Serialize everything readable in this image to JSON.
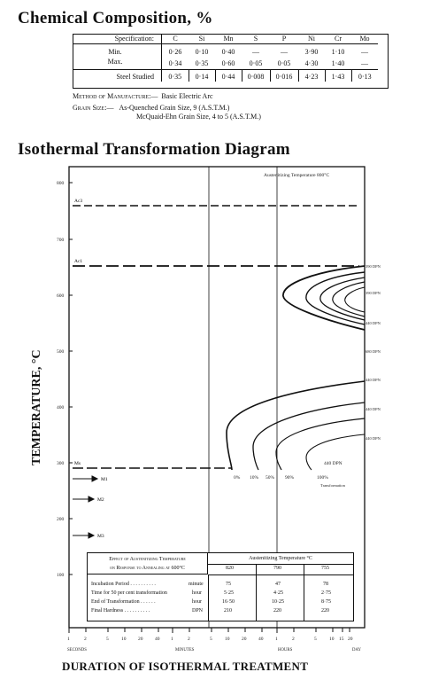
{
  "composition": {
    "title": "Chemical Composition, %",
    "spec_label": "Specification:",
    "elements": [
      "C",
      "Si",
      "Mn",
      "S",
      "P",
      "Ni",
      "Cr",
      "Mo"
    ],
    "min_label": "Min.",
    "max_label": "Max.",
    "min_values": [
      "0·26",
      "0·10",
      "0·40",
      "—",
      "—",
      "3·90",
      "1·10",
      "—"
    ],
    "max_values": [
      "0·34",
      "0·35",
      "0·60",
      "0·05",
      "0·05",
      "4·30",
      "1·40",
      "—"
    ],
    "studied_label": "Steel Studied",
    "studied_values": [
      "0·35",
      "0·14",
      "0·44",
      "0·008",
      "0·016",
      "4·23",
      "1·43",
      "0·13"
    ]
  },
  "manufacture": {
    "label": "Method of Manufacture:—",
    "value": "Basic Electric Arc"
  },
  "grain": {
    "label": "Grain Size:—",
    "line1": "As-Quenched Grain Size, 9 (A.S.T.M.)",
    "line2": "McQuaid-Ehn Grain Size, 4 to 5 (A.S.T.M.)"
  },
  "diagram": {
    "title": "Isothermal Transformation Diagram",
    "y_axis_label": "TEMPERATURE, °C",
    "x_axis_label": "DURATION OF ISOTHERMAL TREATMENT",
    "austenitizing_note": "Austenitizing Temperature 800°C",
    "y_ticks": [
      "800",
      "700",
      "600",
      "500",
      "400",
      "300",
      "200",
      "100"
    ],
    "x_ticks": [
      "1",
      "2",
      "5",
      "10",
      "20",
      "40",
      "1",
      "2",
      "5",
      "10",
      "20",
      "40",
      "1",
      "2",
      "5",
      "10",
      "15",
      "20"
    ],
    "x_units": [
      "SECONDS",
      "MINUTES",
      "HOURS",
      "DAY"
    ],
    "lines": [
      "Ac3",
      "Ac1",
      "Ms",
      "M1",
      "M2",
      "M3"
    ],
    "percent_labels": [
      "0%",
      "10%",
      "50%",
      "90%",
      "100%"
    ],
    "transformation_label": "Transformation",
    "hardness_labels": [
      "390 DPN",
      "390 DPN",
      "440 DPN",
      "680 DPN",
      "440 DPN",
      "440 DPN",
      "440 DPN"
    ],
    "inset": {
      "title_line1": "Effect of Austenitizing Temperature",
      "title_line2": "on Response to Annealing at 600°C",
      "header": "Austenitizing Temperature °C",
      "temps": [
        "820",
        "790",
        "755"
      ],
      "rows": [
        {
          "label": "Incubation Period . . . . . . . . . .",
          "unit": "minute",
          "values": [
            "75",
            "47",
            "78"
          ]
        },
        {
          "label": "Time for 50 per cent transformation",
          "unit": "hour",
          "values": [
            "5·25",
            "4·25",
            "2·75"
          ]
        },
        {
          "label": "End of Transformation . . . . . .",
          "unit": "hour",
          "values": [
            "16·50",
            "10·25",
            "8·75"
          ]
        },
        {
          "label": "Final Hardness . . . . . . . . . .",
          "unit": "DPN",
          "values": [
            "210",
            "220",
            "220"
          ]
        }
      ]
    }
  }
}
